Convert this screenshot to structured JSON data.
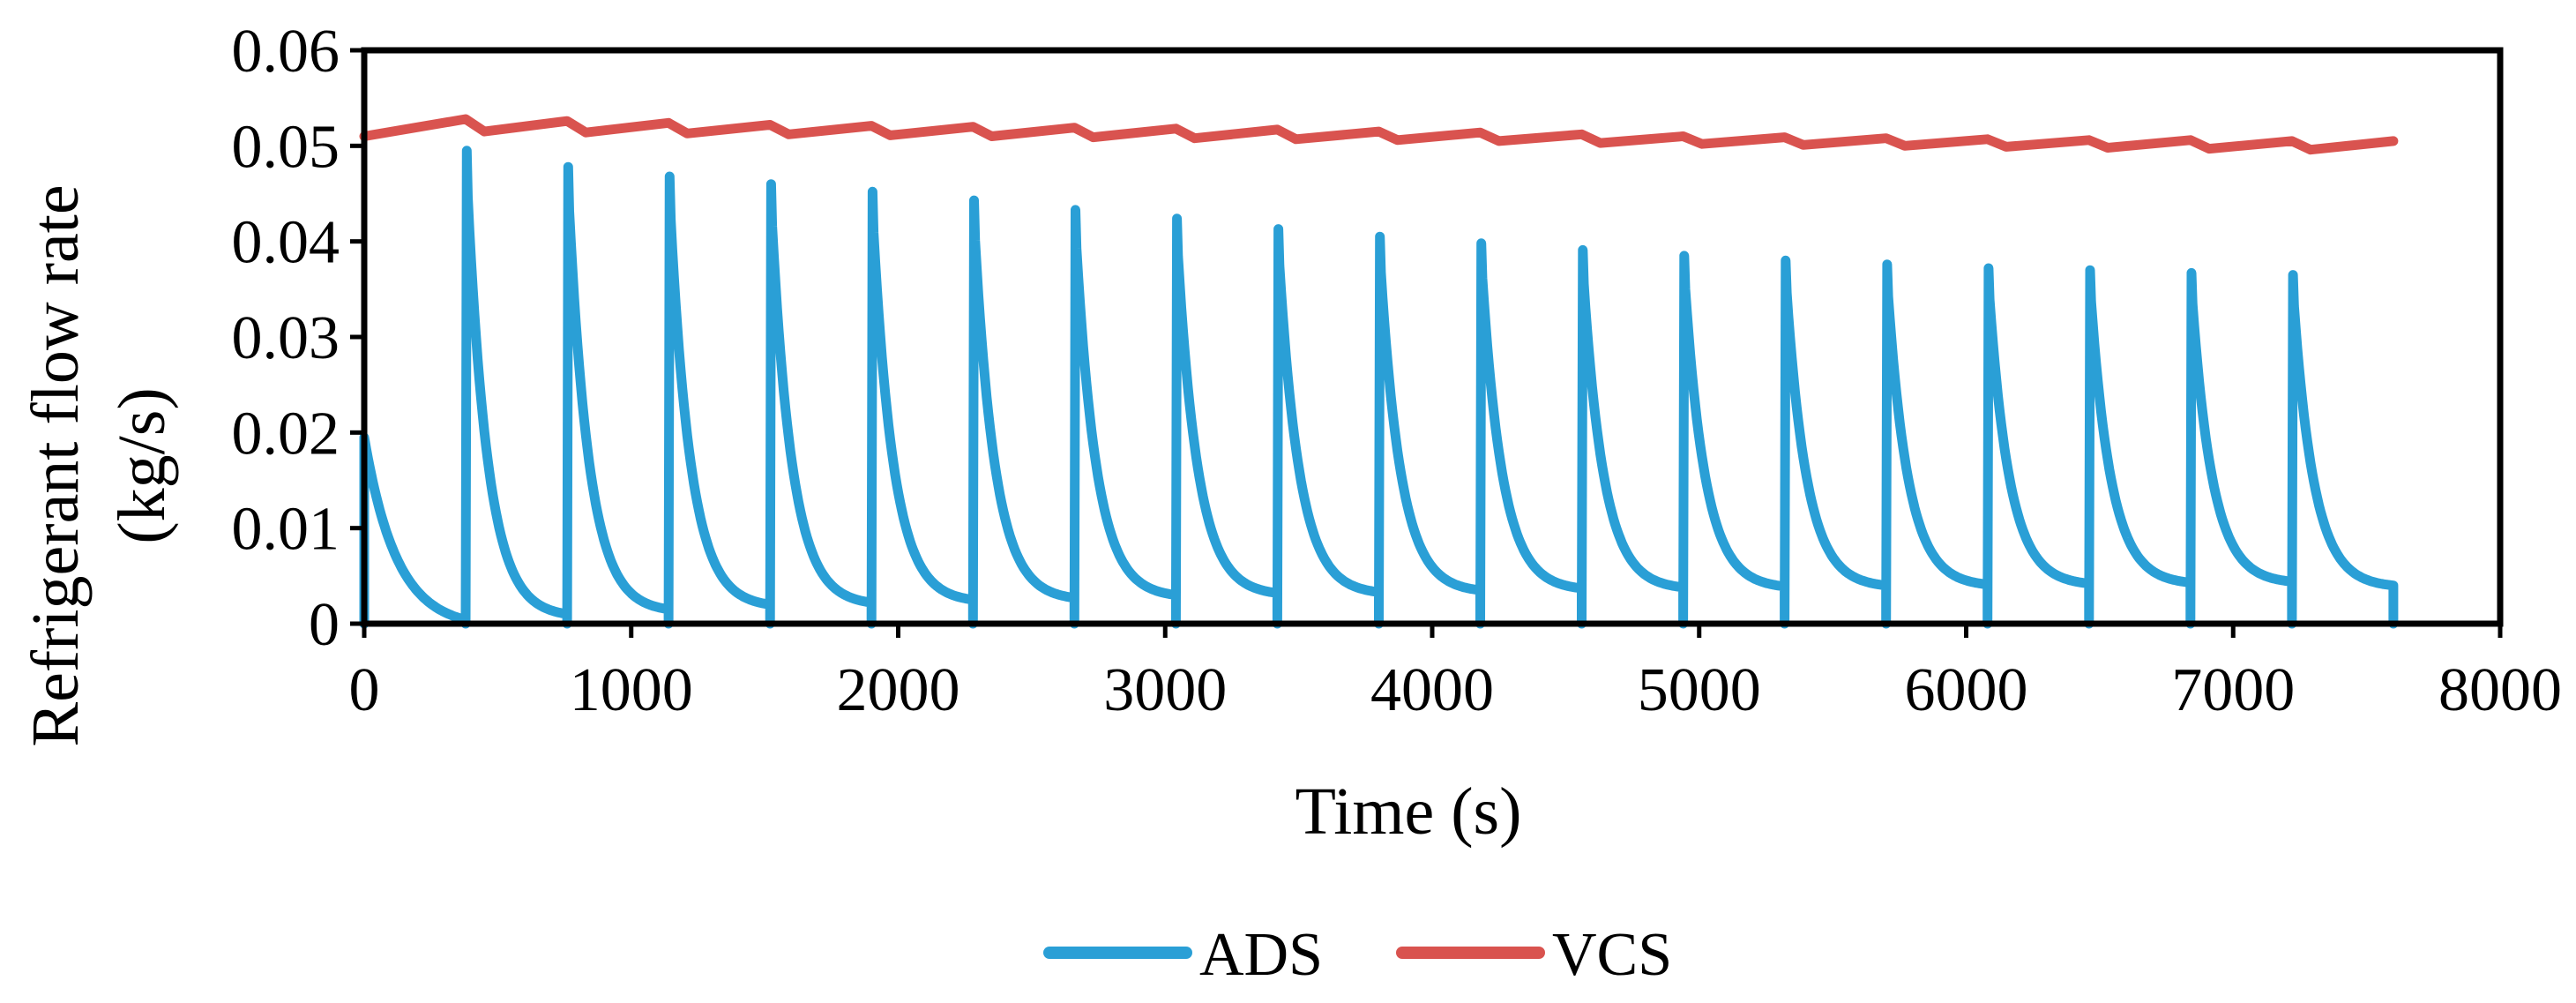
{
  "chart_data": {
    "type": "line",
    "title": "",
    "xlabel": "Time (s)",
    "ylabel_lines": [
      "Refrigerant flow rate",
      "(kg/s)"
    ],
    "xlim": [
      0,
      8000
    ],
    "ylim": [
      0,
      0.06
    ],
    "x_ticks": [
      0,
      1000,
      2000,
      3000,
      4000,
      5000,
      6000,
      7000,
      8000
    ],
    "x_tick_labels": [
      "0",
      "1000",
      "2000",
      "3000",
      "4000",
      "5000",
      "6000",
      "7000",
      "8000"
    ],
    "y_ticks": [
      0,
      0.01,
      0.02,
      0.03,
      0.04,
      0.05,
      0.06
    ],
    "y_tick_labels": [
      "0",
      "0.01",
      "0.02",
      "0.03",
      "0.04",
      "0.05",
      "0.06"
    ],
    "grid": false,
    "legend_position": "bottom-center",
    "cycle_period_s": 380,
    "end_time_s": 7600,
    "series": [
      {
        "name": "ADS",
        "color": "#2a9fd6",
        "initial_peak": 0.0195,
        "initial_trough": 0.0005,
        "cycle_start_times": [
          380,
          760,
          1140,
          1520,
          1900,
          2280,
          2660,
          3040,
          3420,
          3800,
          4180,
          4560,
          4940,
          5320,
          5700,
          6080,
          6460,
          6840,
          7220
        ],
        "cycle_peaks": [
          0.0495,
          0.0478,
          0.0468,
          0.046,
          0.0452,
          0.0443,
          0.0433,
          0.0424,
          0.0413,
          0.0405,
          0.0398,
          0.0391,
          0.0385,
          0.038,
          0.0376,
          0.0372,
          0.037,
          0.0367,
          0.0365
        ],
        "cycle_end_values": [
          0.001,
          0.0015,
          0.002,
          0.0022,
          0.0025,
          0.0027,
          0.003,
          0.0032,
          0.0033,
          0.0035,
          0.0037,
          0.0038,
          0.0039,
          0.004,
          0.0041,
          0.0042,
          0.0043,
          0.0044,
          0.004
        ]
      },
      {
        "name": "VCS",
        "color": "#d9534f",
        "start_value": 0.051,
        "cycle_peaks": [
          0.0528,
          0.0526,
          0.0524,
          0.0522,
          0.0521,
          0.052,
          0.0519,
          0.0518,
          0.0517,
          0.0515,
          0.0514,
          0.0512,
          0.051,
          0.0509,
          0.0508,
          0.0507,
          0.0506,
          0.0506,
          0.0505,
          0.0505
        ],
        "cycle_troughs": [
          0.0515,
          0.0514,
          0.0513,
          0.0512,
          0.0511,
          0.051,
          0.0509,
          0.0508,
          0.0507,
          0.0506,
          0.0505,
          0.0503,
          0.0502,
          0.0501,
          0.05,
          0.0499,
          0.0498,
          0.0497,
          0.0496
        ],
        "end_value": 0.0505
      }
    ]
  }
}
